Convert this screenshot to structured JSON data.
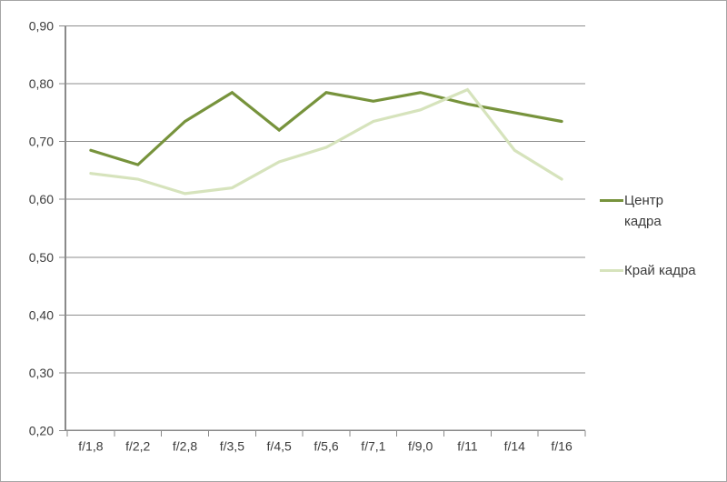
{
  "chart_data": {
    "type": "line",
    "title": "",
    "xlabel": "",
    "ylabel": "",
    "categories": [
      "f/1,8",
      "f/2,2",
      "f/2,8",
      "f/3,5",
      "f/4,5",
      "f/5,6",
      "f/7,1",
      "f/9,0",
      "f/11",
      "f/14",
      "f/16"
    ],
    "series": [
      {
        "name": "Центр кадра",
        "color": "#77933c",
        "values": [
          0.685,
          0.66,
          0.735,
          0.785,
          0.72,
          0.785,
          0.77,
          0.785,
          0.765,
          0.75,
          0.735
        ]
      },
      {
        "name": "Край кадра",
        "color": "#d6e3bc",
        "values": [
          0.645,
          0.635,
          0.61,
          0.62,
          0.665,
          0.69,
          0.735,
          0.755,
          0.79,
          0.685,
          0.635
        ]
      }
    ],
    "ylim": [
      0.2,
      0.9
    ],
    "ytick_step": 0.1,
    "ytick_labels": [
      "0,20",
      "0,30",
      "0,40",
      "0,50",
      "0,60",
      "0,70",
      "0,80",
      "0,90"
    ],
    "decimal_separator": ",",
    "grid": true,
    "legend_position": "right"
  },
  "colors": {
    "background": "#ffffff",
    "border": "#a6a6a6",
    "gridline": "#8e8e8e",
    "axis": "#8a8a8a",
    "text": "#3b3b3b"
  }
}
